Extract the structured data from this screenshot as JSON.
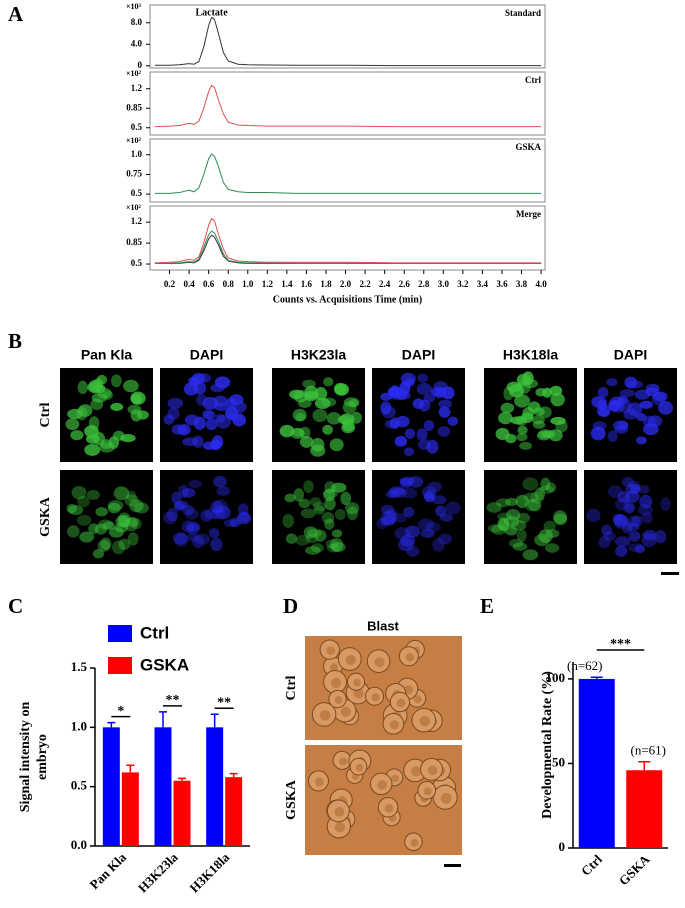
{
  "panel_labels": [
    "A",
    "B",
    "C",
    "D",
    "E"
  ],
  "chart_data": [
    {
      "type": "line",
      "title": "Standard",
      "annotation": "Lactate",
      "multiplier": "×10³",
      "x": [
        0.05,
        0.2,
        0.3,
        0.4,
        0.45,
        0.5,
        0.55,
        0.6,
        0.63,
        0.66,
        0.7,
        0.75,
        0.8,
        0.9,
        1.0,
        1.2,
        1.5,
        2.0,
        2.5,
        3.0,
        3.5,
        4.0
      ],
      "xlim": [
        0,
        4.04
      ],
      "ylim": [
        -0.4,
        11.3
      ],
      "yticks": [
        0,
        {
          "value": 4,
          "label": "4.0"
        },
        {
          "value": 8,
          "label": "8.0"
        }
      ],
      "series": [
        {
          "color": "#333333",
          "values": [
            0.1,
            0.1,
            0.2,
            0.4,
            0.3,
            0.8,
            3.5,
            7.5,
            9.0,
            8.6,
            6.0,
            2.5,
            0.9,
            0.3,
            0.2,
            0.15,
            0.1,
            0.1,
            0.05,
            0.05,
            0.05,
            0.05
          ]
        }
      ]
    },
    {
      "type": "line",
      "title": "Ctrl",
      "multiplier": "×10²",
      "x": [
        0.05,
        0.2,
        0.3,
        0.4,
        0.45,
        0.5,
        0.55,
        0.6,
        0.63,
        0.66,
        0.7,
        0.75,
        0.8,
        0.9,
        1.0,
        1.2,
        1.5,
        2.0,
        2.5,
        3.0,
        3.5,
        4.0
      ],
      "xlim": [
        0,
        4.04
      ],
      "ylim": [
        0.37,
        1.5
      ],
      "yticks": [
        0.5,
        0.85,
        1.2
      ],
      "series": [
        {
          "color": "#e05050",
          "values": [
            0.52,
            0.53,
            0.54,
            0.58,
            0.56,
            0.62,
            0.85,
            1.15,
            1.26,
            1.22,
            1.0,
            0.75,
            0.6,
            0.55,
            0.54,
            0.53,
            0.53,
            0.53,
            0.52,
            0.52,
            0.52,
            0.52
          ]
        }
      ]
    },
    {
      "type": "line",
      "title": "GSKA",
      "multiplier": "×10²",
      "x": [
        0.05,
        0.2,
        0.3,
        0.4,
        0.45,
        0.5,
        0.55,
        0.6,
        0.63,
        0.66,
        0.7,
        0.75,
        0.8,
        0.9,
        1.0,
        1.2,
        1.5,
        2.0,
        2.5,
        3.0,
        3.5,
        4.0
      ],
      "xlim": [
        0,
        4.04
      ],
      "ylim": [
        0.4,
        1.2
      ],
      "yticks": [
        0.5,
        0.75,
        {
          "value": 1,
          "label": "1.0"
        }
      ],
      "series": [
        {
          "color": "#2e8b57",
          "values": [
            0.51,
            0.51,
            0.52,
            0.55,
            0.53,
            0.58,
            0.75,
            0.95,
            1.01,
            0.98,
            0.85,
            0.65,
            0.56,
            0.53,
            0.52,
            0.52,
            0.51,
            0.51,
            0.51,
            0.51,
            0.51,
            0.51
          ]
        }
      ]
    },
    {
      "type": "line",
      "title": "Merge",
      "multiplier": "×10²",
      "xlabel": "Counts vs. Acquisitions Time (min)",
      "x": [
        0.05,
        0.2,
        0.3,
        0.4,
        0.45,
        0.5,
        0.55,
        0.6,
        0.63,
        0.66,
        0.7,
        0.75,
        0.8,
        0.9,
        1.0,
        1.2,
        1.5,
        2.0,
        2.5,
        3.0,
        3.5,
        4.0
      ],
      "xlim": [
        0,
        4.04
      ],
      "ylim": [
        0.4,
        1.47
      ],
      "yticks": [
        0.5,
        0.85,
        1.2
      ],
      "xticks": [
        0.2,
        0.4,
        0.6,
        0.8,
        {
          "value": 1,
          "label": "1.0"
        },
        1.2,
        1.4,
        1.6,
        1.8,
        {
          "value": 2,
          "label": "2.0"
        },
        2.2,
        2.4,
        2.6,
        2.8,
        {
          "value": 3,
          "label": "3.0"
        },
        3.2,
        3.4,
        3.6,
        3.8,
        {
          "value": 4,
          "label": "4.0"
        }
      ],
      "series": [
        {
          "color": "#333333",
          "values": [
            0.51,
            0.51,
            0.51,
            0.53,
            0.52,
            0.56,
            0.72,
            0.92,
            0.98,
            0.95,
            0.82,
            0.63,
            0.55,
            0.52,
            0.51,
            0.51,
            0.51,
            0.51,
            0.51,
            0.51,
            0.51,
            0.51
          ]
        },
        {
          "color": "#2e8b57",
          "values": [
            0.51,
            0.51,
            0.52,
            0.54,
            0.53,
            0.58,
            0.78,
            0.99,
            1.05,
            1.02,
            0.88,
            0.67,
            0.56,
            0.53,
            0.52,
            0.52,
            0.51,
            0.51,
            0.51,
            0.51,
            0.51,
            0.51
          ]
        },
        {
          "color": "#e05050",
          "values": [
            0.52,
            0.53,
            0.54,
            0.58,
            0.56,
            0.62,
            0.85,
            1.15,
            1.26,
            1.22,
            1.0,
            0.75,
            0.6,
            0.55,
            0.54,
            0.53,
            0.53,
            0.53,
            0.52,
            0.52,
            0.52,
            0.52
          ]
        }
      ]
    },
    {
      "type": "grouped-bar",
      "ylabel": [
        "Signal intensity on",
        "embryo"
      ],
      "categories": [
        "Pan Kla",
        "H3K23la",
        "H3K18la"
      ],
      "ylim": [
        0,
        1.5
      ],
      "yticks": [
        {
          "value": 0,
          "label": "0.0"
        },
        0.5,
        {
          "value": 1,
          "label": "1.0"
        },
        1.5
      ],
      "significance": [
        "*",
        "**",
        "**"
      ],
      "series": [
        {
          "name": "Ctrl",
          "color": "#0000ff",
          "values": [
            1.0,
            1.0,
            1.0
          ],
          "errors": [
            0.04,
            0.13,
            0.11
          ]
        },
        {
          "name": "GSKA",
          "color": "#ff0000",
          "values": [
            0.62,
            0.55,
            0.58
          ],
          "errors": [
            0.06,
            0.02,
            0.03
          ]
        }
      ]
    },
    {
      "type": "bar",
      "ylabel": "Developmental Rate (%)",
      "categories": [
        "Ctrl",
        "GSKA"
      ],
      "values": [
        100,
        46
      ],
      "errors": [
        1,
        5
      ],
      "colors": [
        "#0000ff",
        "#ff0000"
      ],
      "n_labels": [
        "(n=62)",
        "(n=61)"
      ],
      "significance": "***",
      "ylim": [
        0,
        110
      ],
      "yticks": [
        0,
        50,
        100
      ]
    }
  ],
  "panel_b": {
    "column_headers": [
      "Pan Kla",
      "DAPI",
      "H3K23la",
      "DAPI",
      "H3K18la",
      "DAPI"
    ],
    "row_labels": [
      "Ctrl",
      "GSKA"
    ]
  },
  "panel_d": {
    "title": "Blast",
    "row_labels": [
      "Ctrl",
      "GSKA"
    ]
  }
}
